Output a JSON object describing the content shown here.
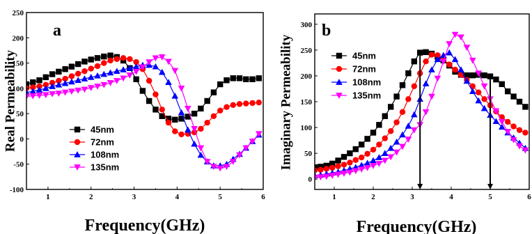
{
  "chart_data": [
    {
      "type": "line",
      "panel_label": "a",
      "xlabel": "Frequency(GHz)",
      "ylabel": "Real Permeability",
      "xlim": [
        0.5,
        6
      ],
      "ylim": [
        -100,
        250
      ],
      "xticks": [
        1,
        2,
        3,
        4,
        5,
        6
      ],
      "yticks": [
        -100,
        -50,
        0,
        50,
        100,
        150,
        200,
        250
      ],
      "legend_position": "lower-left",
      "series": [
        {
          "name": "45nm",
          "color": "#000000",
          "marker": "square",
          "x": [
            0.5,
            0.65,
            0.8,
            0.95,
            1.1,
            1.25,
            1.4,
            1.55,
            1.7,
            1.85,
            2.0,
            2.15,
            2.3,
            2.45,
            2.6,
            2.75,
            2.9,
            3.05,
            3.2,
            3.35,
            3.5,
            3.65,
            3.8,
            3.95,
            4.1,
            4.25,
            4.4,
            4.55,
            4.7,
            4.85,
            5.0,
            5.15,
            5.3,
            5.45,
            5.6,
            5.75,
            5.9
          ],
          "y": [
            108,
            112,
            116,
            122,
            128,
            133,
            138,
            143,
            148,
            153,
            157,
            160,
            163,
            165,
            162,
            155,
            140,
            118,
            95,
            75,
            58,
            45,
            40,
            38,
            40,
            44,
            50,
            60,
            75,
            92,
            108,
            116,
            120,
            120,
            118,
            118,
            120
          ]
        },
        {
          "name": "72nm",
          "color": "#ff0000",
          "marker": "circle",
          "x": [
            0.5,
            0.65,
            0.8,
            0.95,
            1.1,
            1.25,
            1.4,
            1.55,
            1.7,
            1.85,
            2.0,
            2.15,
            2.3,
            2.45,
            2.6,
            2.75,
            2.9,
            3.05,
            3.2,
            3.35,
            3.5,
            3.65,
            3.8,
            3.95,
            4.1,
            4.25,
            4.4,
            4.55,
            4.7,
            4.85,
            5.0,
            5.15,
            5.3,
            5.45,
            5.6,
            5.75,
            5.9
          ],
          "y": [
            100,
            102,
            104,
            107,
            111,
            115,
            119,
            124,
            129,
            134,
            139,
            144,
            150,
            155,
            158,
            160,
            158,
            152,
            138,
            115,
            88,
            58,
            32,
            15,
            9,
            10,
            13,
            20,
            32,
            45,
            56,
            63,
            67,
            69,
            70,
            71,
            72
          ]
        },
        {
          "name": "108nm",
          "color": "#0000ff",
          "marker": "triangle-up",
          "x": [
            0.5,
            0.65,
            0.8,
            0.95,
            1.1,
            1.25,
            1.4,
            1.55,
            1.7,
            1.85,
            2.0,
            2.15,
            2.3,
            2.45,
            2.6,
            2.75,
            2.9,
            3.05,
            3.2,
            3.35,
            3.5,
            3.65,
            3.8,
            3.95,
            4.1,
            4.25,
            4.4,
            4.55,
            4.7,
            4.85,
            5.0,
            5.15,
            5.3,
            5.45,
            5.6,
            5.75,
            5.9
          ],
          "y": [
            92,
            94,
            97,
            100,
            104,
            107,
            110,
            113,
            116,
            119,
            122,
            125,
            128,
            131,
            134,
            137,
            140,
            143,
            146,
            146,
            143,
            132,
            112,
            85,
            52,
            18,
            -10,
            -32,
            -45,
            -53,
            -53,
            -50,
            -40,
            -30,
            -18,
            -5,
            8
          ]
        },
        {
          "name": "135nm",
          "color": "#ff00ff",
          "marker": "triangle-down",
          "x": [
            0.5,
            0.65,
            0.8,
            0.95,
            1.1,
            1.25,
            1.4,
            1.55,
            1.7,
            1.85,
            2.0,
            2.15,
            2.3,
            2.45,
            2.6,
            2.75,
            2.9,
            3.05,
            3.2,
            3.35,
            3.5,
            3.65,
            3.8,
            3.95,
            4.1,
            4.25,
            4.4,
            4.55,
            4.7,
            4.85,
            5.0,
            5.15,
            5.3,
            5.45,
            5.6,
            5.75,
            5.9
          ],
          "y": [
            84,
            85,
            86,
            87,
            89,
            90,
            92,
            94,
            96,
            98,
            101,
            104,
            107,
            111,
            115,
            120,
            126,
            133,
            142,
            152,
            160,
            162,
            153,
            135,
            100,
            60,
            20,
            -18,
            -45,
            -55,
            -58,
            -55,
            -45,
            -32,
            -18,
            -5,
            10
          ]
        }
      ]
    },
    {
      "type": "line",
      "panel_label": "b",
      "xlabel": "Frequency(GHz)",
      "ylabel": "Imaginary Permeability",
      "xlim": [
        0.5,
        6
      ],
      "ylim": [
        -20,
        320
      ],
      "xticks": [
        1,
        2,
        3,
        4,
        5,
        6
      ],
      "yticks": [
        0,
        50,
        100,
        150,
        200,
        250,
        300
      ],
      "legend_position": "top-left",
      "arrows_at_x": [
        3.2,
        5.0
      ],
      "series": [
        {
          "name": "45nm",
          "color": "#000000",
          "marker": "square",
          "x": [
            0.5,
            0.65,
            0.8,
            0.95,
            1.1,
            1.25,
            1.4,
            1.55,
            1.7,
            1.85,
            2.0,
            2.15,
            2.3,
            2.45,
            2.6,
            2.75,
            2.9,
            3.05,
            3.2,
            3.35,
            3.5,
            3.65,
            3.8,
            3.95,
            4.1,
            4.25,
            4.4,
            4.55,
            4.7,
            4.85,
            5.0,
            5.15,
            5.3,
            5.45,
            5.6,
            5.75,
            5.9
          ],
          "y": [
            23,
            24,
            26,
            30,
            36,
            43,
            50,
            58,
            67,
            78,
            90,
            105,
            122,
            140,
            160,
            182,
            205,
            228,
            245,
            246,
            243,
            237,
            230,
            220,
            208,
            202,
            201,
            201,
            202,
            201,
            199,
            193,
            184,
            170,
            160,
            150,
            140
          ]
        },
        {
          "name": "72nm",
          "color": "#ff0000",
          "marker": "circle",
          "x": [
            0.5,
            0.65,
            0.8,
            0.95,
            1.1,
            1.25,
            1.4,
            1.55,
            1.7,
            1.85,
            2.0,
            2.15,
            2.3,
            2.45,
            2.6,
            2.75,
            2.9,
            3.05,
            3.2,
            3.35,
            3.5,
            3.65,
            3.8,
            3.95,
            4.1,
            4.25,
            4.4,
            4.55,
            4.7,
            4.85,
            5.0,
            5.15,
            5.3,
            5.45,
            5.6,
            5.75,
            5.9
          ],
          "y": [
            17,
            18,
            20,
            22,
            25,
            28,
            32,
            37,
            42,
            49,
            57,
            67,
            79,
            93,
            110,
            130,
            155,
            180,
            205,
            228,
            241,
            240,
            232,
            222,
            212,
            202,
            192,
            180,
            168,
            155,
            143,
            131,
            120,
            111,
            102,
            95,
            90
          ]
        },
        {
          "name": "108nm",
          "color": "#0000ff",
          "marker": "triangle-up",
          "x": [
            0.5,
            0.65,
            0.8,
            0.95,
            1.1,
            1.25,
            1.4,
            1.55,
            1.7,
            1.85,
            2.0,
            2.15,
            2.3,
            2.45,
            2.6,
            2.75,
            2.9,
            3.05,
            3.2,
            3.35,
            3.5,
            3.65,
            3.8,
            3.95,
            4.1,
            4.25,
            4.4,
            4.55,
            4.7,
            4.85,
            5.0,
            5.15,
            5.3,
            5.45,
            5.6,
            5.75,
            5.9
          ],
          "y": [
            7,
            8,
            10,
            12,
            14,
            17,
            20,
            23,
            27,
            31,
            36,
            42,
            50,
            60,
            72,
            86,
            103,
            125,
            155,
            185,
            212,
            232,
            240,
            245,
            232,
            212,
            190,
            170,
            152,
            137,
            124,
            112,
            101,
            90,
            80,
            70,
            60
          ]
        },
        {
          "name": "135nm",
          "color": "#ff00ff",
          "marker": "triangle-down",
          "x": [
            0.5,
            0.65,
            0.8,
            0.95,
            1.1,
            1.25,
            1.4,
            1.55,
            1.7,
            1.85,
            2.0,
            2.15,
            2.3,
            2.45,
            2.6,
            2.75,
            2.9,
            3.05,
            3.2,
            3.35,
            3.5,
            3.65,
            3.8,
            3.95,
            4.1,
            4.25,
            4.4,
            4.55,
            4.7,
            4.85,
            5.0,
            5.15,
            5.3,
            5.45,
            5.6,
            5.75,
            5.9
          ],
          "y": [
            3,
            4,
            5,
            7,
            9,
            11,
            13,
            16,
            19,
            22,
            26,
            30,
            36,
            43,
            52,
            63,
            77,
            95,
            105,
            130,
            160,
            195,
            228,
            262,
            280,
            275,
            255,
            230,
            205,
            180,
            155,
            132,
            111,
            92,
            76,
            64,
            56
          ]
        }
      ]
    }
  ]
}
